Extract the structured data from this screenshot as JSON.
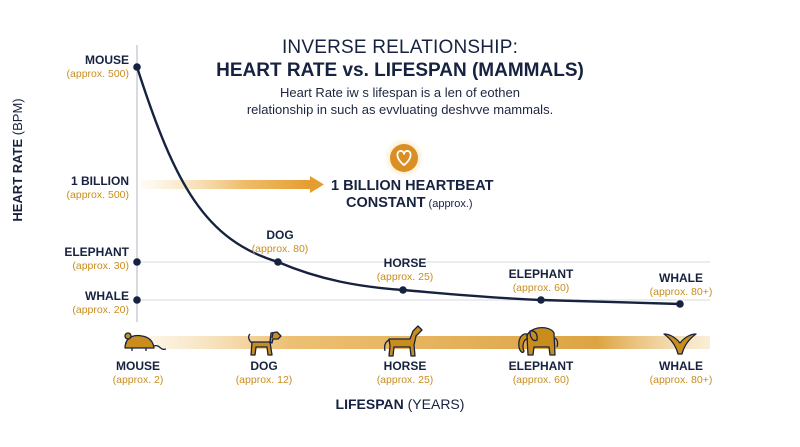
{
  "header": {
    "title_line1": "INVERSE RELATIONSHIP:",
    "title_line2": "HEART RATE vs. LIFESPAN (MAMMALS)",
    "subtitle_line1": "Heart Rate iw s lifespan is a len of eothen",
    "subtitle_line2": "relationship in such as evvluating deshvve mammals."
  },
  "axes": {
    "ylabel_bold": "HEART RATE",
    "ylabel_unit": " (BPM)",
    "xlabel_bold": "LIFESPAN",
    "xlabel_unit": " (YEARS)"
  },
  "colors": {
    "navy": "#16223f",
    "gold": "#c98d1e",
    "gold_light": "#f2c472",
    "grid": "#d6d9de"
  },
  "icons": [
    "mouse-icon",
    "dog-icon",
    "horse-icon",
    "elephant-icon",
    "whale-icon",
    "heart-icon"
  ],
  "annotation": {
    "line1": "1 BILLION HEARTBEAT",
    "line2_bold": "CONSTANT",
    "line2_note": " (approx.)"
  },
  "chart_data": {
    "type": "line",
    "title": "HEART RATE vs. LIFESPAN (MAMMALS)",
    "xlabel": "LIFESPAN (YEARS)",
    "ylabel": "HEART RATE (BPM)",
    "y_axis_labels": [
      {
        "name": "MOUSE",
        "note": "(approx. 500)"
      },
      {
        "name": "1 BILLION",
        "note": "(approx. 500)"
      },
      {
        "name": "ELEPHANT",
        "note": "(approx. 30)"
      },
      {
        "name": "WHALE",
        "note": "(approx. 20)"
      }
    ],
    "points": [
      {
        "name": "MOUSE",
        "note": "(approx. 500)"
      },
      {
        "name": "DOG",
        "note": "(approx. 80)"
      },
      {
        "name": "HORSE",
        "note": "(approx. 25)"
      },
      {
        "name": "ELEPHANT",
        "note": "(approx. 60)"
      },
      {
        "name": "WHALE",
        "note": "(approx. 80+)"
      }
    ],
    "x_categories": [
      {
        "name": "MOUSE",
        "note": "(approx. 2)"
      },
      {
        "name": "DOG",
        "note": "(approx. 12)"
      },
      {
        "name": "HORSE",
        "note": "(approx. 25)"
      },
      {
        "name": "ELEPHANT",
        "note": "(approx. 60)"
      },
      {
        "name": "WHALE",
        "note": "(approx. 80+)"
      }
    ]
  }
}
